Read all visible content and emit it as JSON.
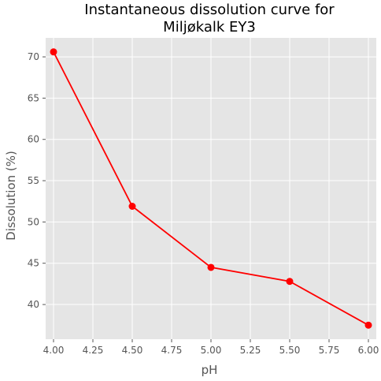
{
  "chart_data": {
    "type": "line",
    "title_lines": [
      "Instantaneous dissolution curve for",
      "Miljøkalk EY3"
    ],
    "xlabel": "pH",
    "ylabel": "Dissolution (%)",
    "x": [
      4.0,
      4.5,
      5.0,
      5.5,
      6.0
    ],
    "series": [
      {
        "values": [
          70.6,
          51.9,
          44.5,
          42.8,
          37.5
        ],
        "color": "#ff0000"
      }
    ],
    "xlim": [
      3.95,
      6.05
    ],
    "ylim": [
      35.8,
      72.3
    ],
    "x_ticks": [
      4.0,
      4.25,
      4.5,
      4.75,
      5.0,
      5.25,
      5.5,
      5.75,
      6.0
    ],
    "x_tick_labels": [
      "4.00",
      "4.25",
      "4.50",
      "4.75",
      "5.00",
      "5.25",
      "5.50",
      "5.75",
      "6.00"
    ],
    "y_ticks": [
      40,
      45,
      50,
      55,
      60,
      65,
      70
    ],
    "y_tick_labels": [
      "40",
      "45",
      "50",
      "55",
      "60",
      "65",
      "70"
    ],
    "grid": true,
    "background": "#e5e5e5",
    "grid_color": "#ffffff"
  }
}
